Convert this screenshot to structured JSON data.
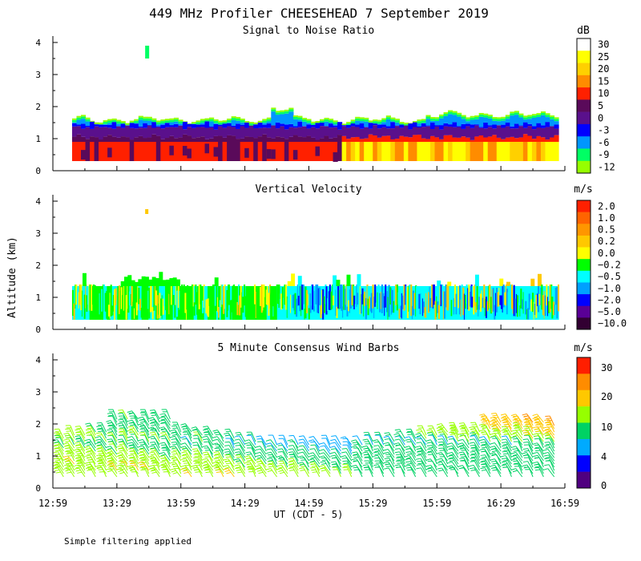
{
  "title": "449 MHz Profiler CHEESEHEAD  7 September 2019",
  "footer_note": "Simple filtering applied",
  "y_axis_label": "Altitude (km)",
  "x_axis_label": "UT  (CDT - 5)",
  "chart_data": [
    {
      "type": "heatmap",
      "title": "Signal to Noise Ratio",
      "units": "dB",
      "xlabel": "UT  (CDT - 5)",
      "ylabel": "Altitude (km)",
      "x_ticks": [
        "12:59",
        "13:29",
        "13:59",
        "14:29",
        "14:59",
        "15:29",
        "15:59",
        "16:29",
        "16:59"
      ],
      "y_ticks": [
        "0",
        "1",
        "2",
        "3",
        "4"
      ],
      "xlim": [
        "12:59",
        "16:59"
      ],
      "ylim": [
        0,
        4.2
      ],
      "colorbar": {
        "labels": [
          "30",
          "25",
          "20",
          "15",
          "10",
          "5",
          "0",
          "-3",
          "-6",
          "-9",
          "-12"
        ],
        "colors": [
          "#ffffff",
          "#ffff00",
          "#ffd000",
          "#ff8c00",
          "#ff2000",
          "#5a0a5a",
          "#5a108c",
          "#0000ff",
          "#0096ff",
          "#00ff64",
          "#96ff00"
        ]
      },
      "summary": {
        "data_time_range": [
          "13:08",
          "16:56"
        ],
        "min_altitude_km": 0.3,
        "echo_top_km_typical": 1.6,
        "echo_top_km_max": 2.2,
        "isolated_echo": {
          "time": "13:43",
          "altitude_km": 3.7
        }
      }
    },
    {
      "type": "heatmap",
      "title": "Vertical Velocity",
      "units": "m/s",
      "xlabel": "UT  (CDT - 5)",
      "ylabel": "Altitude (km)",
      "x_ticks": [
        "12:59",
        "13:29",
        "13:59",
        "14:29",
        "14:59",
        "15:29",
        "15:59",
        "16:29",
        "16:59"
      ],
      "y_ticks": [
        "0",
        "1",
        "2",
        "3",
        "4"
      ],
      "xlim": [
        "12:59",
        "16:59"
      ],
      "ylim": [
        0,
        4.2
      ],
      "colorbar": {
        "labels": [
          "2.0",
          "1.0",
          "0.5",
          "0.2",
          "0.0",
          "−0.2",
          "−0.5",
          "−1.0",
          "−2.0",
          "−5.0",
          "−10.0"
        ],
        "colors": [
          "#ff2000",
          "#ff6400",
          "#ff9600",
          "#ffc800",
          "#ffff00",
          "#00ff00",
          "#00ffff",
          "#00a0ff",
          "#0000ff",
          "#5a0096",
          "#320032"
        ]
      },
      "summary": {
        "data_time_range": [
          "13:08",
          "16:56"
        ],
        "min_altitude_km": 0.3,
        "top_km_typical": 1.35,
        "top_km_max": 1.8
      }
    },
    {
      "type": "scatter",
      "title": "5 Minute Consensus Wind Barbs",
      "units": "m/s",
      "xlabel": "UT  (CDT - 5)",
      "ylabel": "Altitude (km)",
      "x_ticks": [
        "12:59",
        "13:29",
        "13:59",
        "14:29",
        "14:59",
        "15:29",
        "15:59",
        "16:29",
        "16:59"
      ],
      "y_ticks": [
        "0",
        "1",
        "2",
        "3",
        "4"
      ],
      "xlim": [
        "12:59",
        "16:59"
      ],
      "ylim": [
        0,
        4.2
      ],
      "colorbar": {
        "labels": [
          "30",
          "20",
          "10",
          "4",
          "0"
        ],
        "colors": [
          "#ff1e00",
          "#ff8c00",
          "#ffc800",
          "#96ff00",
          "#00d264",
          "#00aaff",
          "#0000ff",
          "#500080"
        ]
      },
      "summary": {
        "interval_minutes": 5,
        "data_time_range": [
          "12:59",
          "16:56"
        ],
        "altitude_range_km": [
          0.3,
          2.1
        ],
        "typical_speed_ms": [
          5,
          15
        ],
        "max_speed_ms": 20
      }
    }
  ]
}
